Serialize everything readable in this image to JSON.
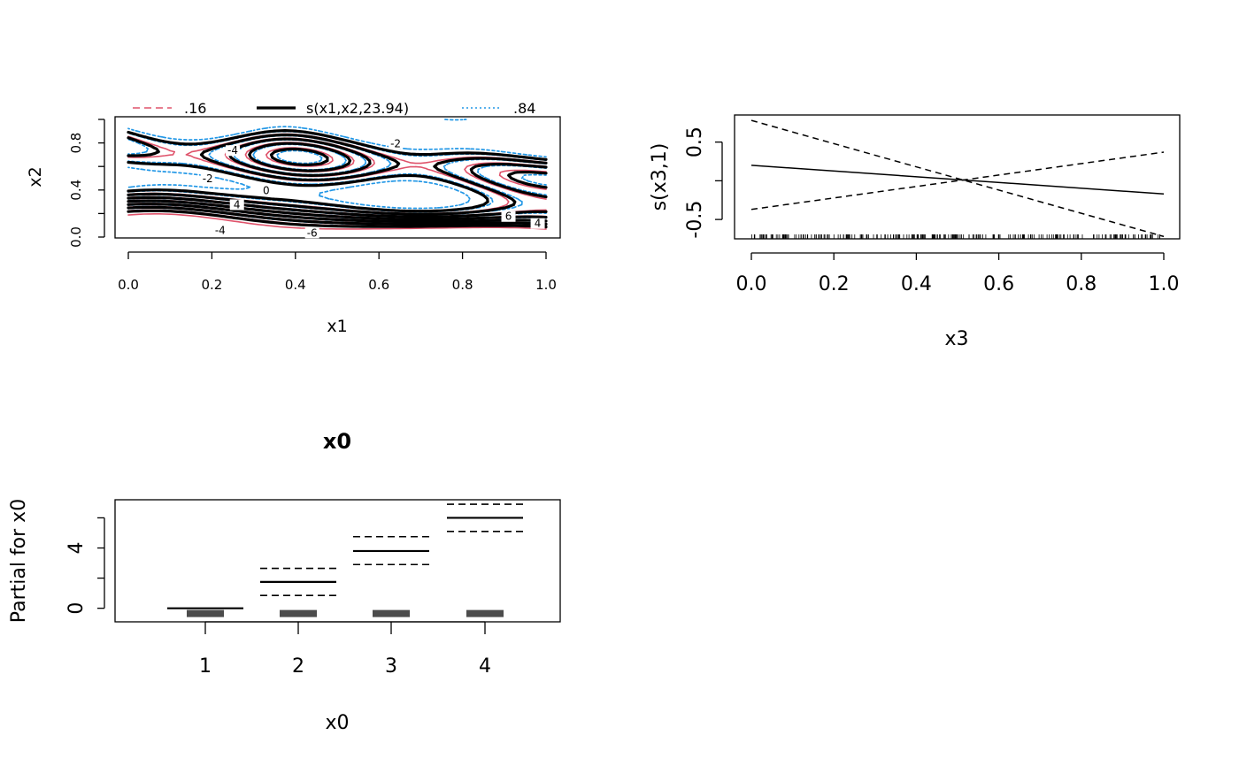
{
  "chart_data": [
    {
      "type": "contour",
      "panel": "top-left",
      "xlabel": "x1",
      "ylabel": "x2",
      "xlim": [
        0,
        1
      ],
      "ylim": [
        0,
        1
      ],
      "x_ticks": [
        "0.0",
        "0.2",
        "0.4",
        "0.6",
        "0.8",
        "1.0"
      ],
      "y_ticks": [
        "0.0",
        "0.4",
        "0.8"
      ],
      "legend": [
        {
          "label": ".16",
          "style": "dashed",
          "color": "#DF536B"
        },
        {
          "label": "s(x1,x2,23.94)",
          "style": "solid",
          "color": "#000000"
        },
        {
          "label": ".84",
          "style": "dotted",
          "color": "#2297E6"
        }
      ],
      "legend_position": "top",
      "contour_levels": [
        "-6",
        "-4",
        "-2",
        "0",
        "2",
        "4",
        "6"
      ],
      "contour_labels": [
        {
          "text": "-4",
          "x": 0.25,
          "y": 0.72
        },
        {
          "text": "-2",
          "x": 0.19,
          "y": 0.48
        },
        {
          "text": "0",
          "x": 0.33,
          "y": 0.38
        },
        {
          "text": "4",
          "x": 0.26,
          "y": 0.26
        },
        {
          "text": "-2",
          "x": 0.64,
          "y": 0.78
        },
        {
          "text": "6",
          "x": 0.91,
          "y": 0.16
        },
        {
          "text": "4",
          "x": 0.98,
          "y": 0.1
        },
        {
          "text": "-4",
          "x": 0.22,
          "y": 0.04
        },
        {
          "text": "-6",
          "x": 0.44,
          "y": 0.02
        }
      ],
      "colors": {
        "lower": "#DF536B",
        "estimate": "#000000",
        "upper": "#2297E6"
      }
    },
    {
      "type": "line",
      "panel": "top-right",
      "xlabel": "x3",
      "ylabel": "s(x3,1)",
      "xlim": [
        0,
        1
      ],
      "ylim": [
        -0.75,
        0.85
      ],
      "x_ticks": [
        "0.0",
        "0.2",
        "0.4",
        "0.6",
        "0.8",
        "1.0"
      ],
      "y_ticks": [
        "-0.5",
        "0.5"
      ],
      "series": [
        {
          "style": "solid",
          "x": [
            0,
            1
          ],
          "y": [
            0.2,
            -0.17
          ]
        },
        {
          "style": "dashed",
          "x": [
            0,
            1
          ],
          "y": [
            0.78,
            -0.72
          ]
        },
        {
          "style": "dashed",
          "x": [
            0,
            1
          ],
          "y": [
            -0.37,
            0.37
          ]
        }
      ],
      "rug": true
    },
    {
      "type": "bar",
      "panel": "bottom-left",
      "title": "x0",
      "xlabel": "x0",
      "ylabel": "Partial for x0",
      "categories": [
        "1",
        "2",
        "3",
        "4"
      ],
      "ylim": [
        -0.9,
        7.2
      ],
      "y_ticks": [
        "0",
        "4"
      ],
      "series": [
        {
          "style": "solid",
          "values": [
            0,
            1.75,
            3.8,
            6.0
          ]
        },
        {
          "style": "dashed",
          "values": [
            null,
            2.65,
            4.75,
            6.9
          ]
        },
        {
          "style": "dashed",
          "values": [
            null,
            0.85,
            2.9,
            5.1
          ]
        }
      ],
      "rug": true
    }
  ]
}
